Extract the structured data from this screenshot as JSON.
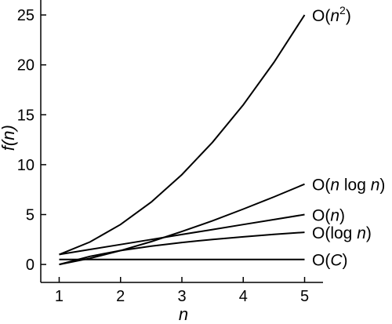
{
  "chart_data": {
    "type": "line",
    "title": "",
    "xlabel": "n",
    "ylabel": "f(n)",
    "xlim": [
      0.7,
      5.3
    ],
    "ylim": [
      -1.8,
      26.5
    ],
    "x_ticks": [
      "1",
      "2",
      "3",
      "4",
      "5"
    ],
    "y_ticks": [
      "0",
      "5",
      "10",
      "15",
      "20",
      "25"
    ],
    "grid": false,
    "legend": "none",
    "x": [
      1,
      1.5,
      2,
      2.5,
      3,
      3.5,
      4,
      4.5,
      5
    ],
    "series": [
      {
        "name": "O(n²)",
        "label_base": "O(",
        "label_var": "n",
        "label_sup": "2",
        "label_close": ")",
        "values": [
          1,
          2.25,
          4,
          6.25,
          9,
          12.25,
          16,
          20.25,
          25
        ]
      },
      {
        "name": "O(n log n)",
        "label_base": "O(",
        "label_var": "n",
        "label_mid": " log ",
        "label_var2": "n",
        "label_close": ")",
        "values": [
          0,
          0.61,
          1.39,
          2.29,
          3.3,
          4.38,
          5.55,
          6.77,
          8.05
        ]
      },
      {
        "name": "O(n)",
        "label_base": "O(",
        "label_var": "n",
        "label_close": ")",
        "values": [
          1,
          1.5,
          2,
          2.5,
          3,
          3.5,
          4,
          4.5,
          5
        ]
      },
      {
        "name": "O(log n)",
        "label_base": "O(log ",
        "label_var": "n",
        "label_close": ")",
        "values": [
          0,
          0.81,
          1.39,
          1.83,
          2.2,
          2.51,
          2.77,
          3.01,
          3.22
        ]
      },
      {
        "name": "O(C)",
        "label_base": "O(",
        "label_var": "C",
        "label_close": ")",
        "values": [
          0.5,
          0.5,
          0.5,
          0.5,
          0.5,
          0.5,
          0.5,
          0.5,
          0.5
        ]
      }
    ]
  }
}
